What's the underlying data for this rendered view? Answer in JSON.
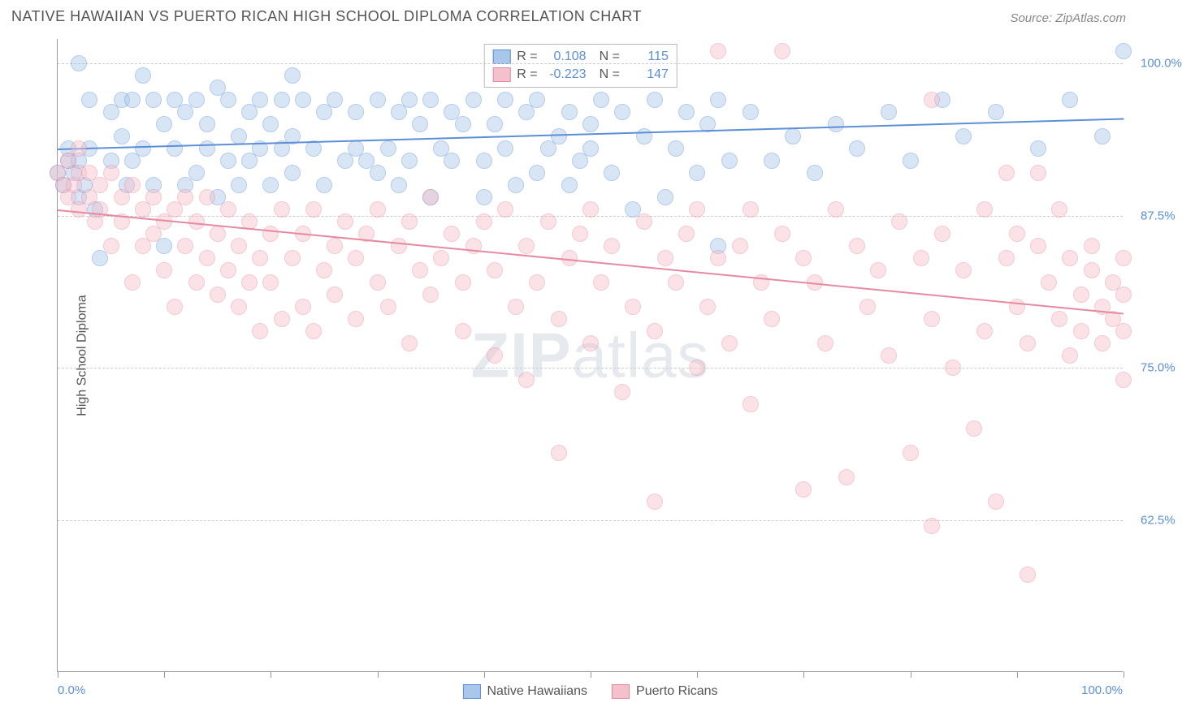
{
  "title": "NATIVE HAWAIIAN VS PUERTO RICAN HIGH SCHOOL DIPLOMA CORRELATION CHART",
  "source": "Source: ZipAtlas.com",
  "watermark_a": "ZIP",
  "watermark_b": "atlas",
  "yaxis_title": "High School Diploma",
  "xaxis_left": "0.0%",
  "xaxis_right": "100.0%",
  "chart": {
    "type": "scatter",
    "xlim": [
      0,
      100
    ],
    "ylim": [
      50,
      102
    ],
    "yticks": [
      {
        "v": 62.5,
        "label": "62.5%"
      },
      {
        "v": 75.0,
        "label": "75.0%"
      },
      {
        "v": 87.5,
        "label": "87.5%"
      },
      {
        "v": 100.0,
        "label": "100.0%"
      }
    ],
    "xticks_minor": [
      0,
      10,
      20,
      30,
      40,
      50,
      60,
      70,
      80,
      90,
      100
    ],
    "background_color": "#ffffff",
    "grid_color": "#cccccc",
    "marker_radius": 10,
    "marker_opacity": 0.45,
    "series": [
      {
        "name": "Native Hawaiians",
        "color_fill": "#a9c7ea",
        "color_stroke": "#5b8fd6",
        "R": "0.108",
        "N": "115",
        "trend": {
          "y_at_x0": 93.0,
          "y_at_x100": 95.5
        },
        "points": [
          [
            0,
            91
          ],
          [
            0.5,
            90
          ],
          [
            1,
            92
          ],
          [
            1,
            93
          ],
          [
            1.5,
            91
          ],
          [
            2,
            100
          ],
          [
            2,
            92
          ],
          [
            2,
            89
          ],
          [
            2.5,
            90
          ],
          [
            3,
            93
          ],
          [
            3,
            97
          ],
          [
            3.5,
            88
          ],
          [
            4,
            84
          ],
          [
            5,
            96
          ],
          [
            5,
            92
          ],
          [
            6,
            97
          ],
          [
            6,
            94
          ],
          [
            6.5,
            90
          ],
          [
            7,
            97
          ],
          [
            7,
            92
          ],
          [
            8,
            93
          ],
          [
            8,
            99
          ],
          [
            9,
            97
          ],
          [
            9,
            90
          ],
          [
            10,
            95
          ],
          [
            10,
            85
          ],
          [
            11,
            97
          ],
          [
            11,
            93
          ],
          [
            12,
            90
          ],
          [
            12,
            96
          ],
          [
            13,
            97
          ],
          [
            13,
            91
          ],
          [
            14,
            95
          ],
          [
            14,
            93
          ],
          [
            15,
            98
          ],
          [
            15,
            89
          ],
          [
            16,
            97
          ],
          [
            16,
            92
          ],
          [
            17,
            94
          ],
          [
            17,
            90
          ],
          [
            18,
            96
          ],
          [
            18,
            92
          ],
          [
            19,
            97
          ],
          [
            19,
            93
          ],
          [
            20,
            95
          ],
          [
            20,
            90
          ],
          [
            21,
            97
          ],
          [
            21,
            93
          ],
          [
            22,
            94
          ],
          [
            22,
            91
          ],
          [
            22,
            99
          ],
          [
            23,
            97
          ],
          [
            24,
            93
          ],
          [
            25,
            96
          ],
          [
            25,
            90
          ],
          [
            26,
            97
          ],
          [
            27,
            92
          ],
          [
            28,
            96
          ],
          [
            28,
            93
          ],
          [
            29,
            92
          ],
          [
            30,
            97
          ],
          [
            30,
            91
          ],
          [
            31,
            93
          ],
          [
            32,
            96
          ],
          [
            32,
            90
          ],
          [
            33,
            97
          ],
          [
            33,
            92
          ],
          [
            34,
            95
          ],
          [
            35,
            97
          ],
          [
            35,
            89
          ],
          [
            36,
            93
          ],
          [
            37,
            96
          ],
          [
            37,
            92
          ],
          [
            38,
            95
          ],
          [
            39,
            97
          ],
          [
            40,
            92
          ],
          [
            40,
            89
          ],
          [
            41,
            95
          ],
          [
            42,
            97
          ],
          [
            42,
            93
          ],
          [
            43,
            90
          ],
          [
            44,
            96
          ],
          [
            45,
            97
          ],
          [
            45,
            91
          ],
          [
            46,
            93
          ],
          [
            47,
            94
          ],
          [
            48,
            96
          ],
          [
            48,
            90
          ],
          [
            49,
            92
          ],
          [
            50,
            95
          ],
          [
            50,
            93
          ],
          [
            51,
            97
          ],
          [
            52,
            91
          ],
          [
            53,
            96
          ],
          [
            54,
            88
          ],
          [
            55,
            94
          ],
          [
            56,
            97
          ],
          [
            57,
            89
          ],
          [
            58,
            93
          ],
          [
            59,
            96
          ],
          [
            60,
            91
          ],
          [
            61,
            95
          ],
          [
            62,
            97
          ],
          [
            62,
            85
          ],
          [
            63,
            92
          ],
          [
            65,
            96
          ],
          [
            67,
            92
          ],
          [
            69,
            94
          ],
          [
            71,
            91
          ],
          [
            73,
            95
          ],
          [
            75,
            93
          ],
          [
            78,
            96
          ],
          [
            80,
            92
          ],
          [
            83,
            97
          ],
          [
            85,
            94
          ],
          [
            88,
            96
          ],
          [
            92,
            93
          ],
          [
            95,
            97
          ],
          [
            98,
            94
          ],
          [
            100,
            101
          ]
        ]
      },
      {
        "name": "Puerto Ricans",
        "color_fill": "#f4c0cb",
        "color_stroke": "#e68aa2",
        "R": "-0.223",
        "N": "147",
        "trend": {
          "y_at_x0": 88.0,
          "y_at_x100": 79.5
        },
        "points": [
          [
            0,
            91
          ],
          [
            0.5,
            90
          ],
          [
            1,
            89
          ],
          [
            1,
            92
          ],
          [
            1.5,
            90
          ],
          [
            2,
            88
          ],
          [
            2,
            91
          ],
          [
            2,
            93
          ],
          [
            3,
            89
          ],
          [
            3,
            91
          ],
          [
            3.5,
            87
          ],
          [
            4,
            90
          ],
          [
            4,
            88
          ],
          [
            5,
            91
          ],
          [
            5,
            85
          ],
          [
            6,
            89
          ],
          [
            6,
            87
          ],
          [
            7,
            82
          ],
          [
            7,
            90
          ],
          [
            8,
            88
          ],
          [
            8,
            85
          ],
          [
            9,
            86
          ],
          [
            9,
            89
          ],
          [
            10,
            83
          ],
          [
            10,
            87
          ],
          [
            11,
            80
          ],
          [
            11,
            88
          ],
          [
            12,
            85
          ],
          [
            12,
            89
          ],
          [
            13,
            82
          ],
          [
            13,
            87
          ],
          [
            14,
            84
          ],
          [
            14,
            89
          ],
          [
            15,
            81
          ],
          [
            15,
            86
          ],
          [
            16,
            83
          ],
          [
            16,
            88
          ],
          [
            17,
            80
          ],
          [
            17,
            85
          ],
          [
            18,
            82
          ],
          [
            18,
            87
          ],
          [
            19,
            84
          ],
          [
            19,
            78
          ],
          [
            20,
            86
          ],
          [
            20,
            82
          ],
          [
            21,
            88
          ],
          [
            21,
            79
          ],
          [
            22,
            84
          ],
          [
            23,
            86
          ],
          [
            23,
            80
          ],
          [
            24,
            88
          ],
          [
            24,
            78
          ],
          [
            25,
            83
          ],
          [
            26,
            85
          ],
          [
            26,
            81
          ],
          [
            27,
            87
          ],
          [
            28,
            79
          ],
          [
            28,
            84
          ],
          [
            29,
            86
          ],
          [
            30,
            82
          ],
          [
            30,
            88
          ],
          [
            31,
            80
          ],
          [
            32,
            85
          ],
          [
            33,
            87
          ],
          [
            33,
            77
          ],
          [
            34,
            83
          ],
          [
            35,
            89
          ],
          [
            35,
            81
          ],
          [
            36,
            84
          ],
          [
            37,
            86
          ],
          [
            38,
            78
          ],
          [
            38,
            82
          ],
          [
            39,
            85
          ],
          [
            40,
            87
          ],
          [
            41,
            76
          ],
          [
            41,
            83
          ],
          [
            42,
            88
          ],
          [
            43,
            80
          ],
          [
            44,
            74
          ],
          [
            44,
            85
          ],
          [
            45,
            82
          ],
          [
            46,
            87
          ],
          [
            47,
            68
          ],
          [
            47,
            79
          ],
          [
            48,
            84
          ],
          [
            49,
            86
          ],
          [
            50,
            77
          ],
          [
            50,
            88
          ],
          [
            51,
            82
          ],
          [
            52,
            85
          ],
          [
            53,
            73
          ],
          [
            54,
            80
          ],
          [
            55,
            87
          ],
          [
            56,
            64
          ],
          [
            56,
            78
          ],
          [
            57,
            84
          ],
          [
            58,
            82
          ],
          [
            59,
            86
          ],
          [
            60,
            75
          ],
          [
            60,
            88
          ],
          [
            61,
            80
          ],
          [
            62,
            84
          ],
          [
            62,
            101
          ],
          [
            63,
            77
          ],
          [
            64,
            85
          ],
          [
            65,
            72
          ],
          [
            65,
            88
          ],
          [
            66,
            82
          ],
          [
            67,
            79
          ],
          [
            68,
            86
          ],
          [
            68,
            101
          ],
          [
            70,
            65
          ],
          [
            70,
            84
          ],
          [
            71,
            82
          ],
          [
            72,
            77
          ],
          [
            73,
            88
          ],
          [
            74,
            66
          ],
          [
            75,
            85
          ],
          [
            76,
            80
          ],
          [
            77,
            83
          ],
          [
            78,
            76
          ],
          [
            79,
            87
          ],
          [
            80,
            68
          ],
          [
            81,
            84
          ],
          [
            82,
            62
          ],
          [
            82,
            79
          ],
          [
            82,
            97
          ],
          [
            83,
            86
          ],
          [
            84,
            75
          ],
          [
            85,
            83
          ],
          [
            86,
            70
          ],
          [
            87,
            88
          ],
          [
            87,
            78
          ],
          [
            88,
            64
          ],
          [
            89,
            84
          ],
          [
            89,
            91
          ],
          [
            90,
            80
          ],
          [
            90,
            86
          ],
          [
            91,
            58
          ],
          [
            91,
            77
          ],
          [
            92,
            85
          ],
          [
            92,
            91
          ],
          [
            93,
            82
          ],
          [
            94,
            79
          ],
          [
            94,
            88
          ],
          [
            95,
            76
          ],
          [
            95,
            84
          ],
          [
            96,
            81
          ],
          [
            96,
            78
          ],
          [
            97,
            85
          ],
          [
            97,
            83
          ],
          [
            98,
            80
          ],
          [
            98,
            77
          ],
          [
            99,
            82
          ],
          [
            99,
            79
          ],
          [
            100,
            84
          ],
          [
            100,
            81
          ],
          [
            100,
            78
          ],
          [
            100,
            74
          ]
        ]
      }
    ]
  },
  "legend": [
    {
      "label": "Native Hawaiians"
    },
    {
      "label": "Puerto Ricans"
    }
  ]
}
